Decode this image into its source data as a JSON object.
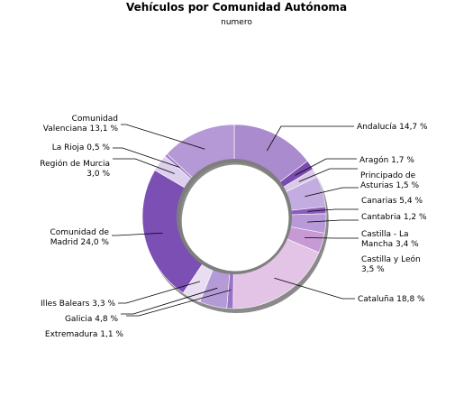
{
  "chart_data": {
    "type": "pie",
    "title": "Vehículos por Comunidad Autónoma",
    "subtitle": "numero",
    "unit": "%",
    "slices": [
      {
        "label": "Andalucía",
        "value_text": "14,7 %",
        "value": 14.7,
        "color": "#a98bce"
      },
      {
        "label": "Aragón",
        "value_text": "1,7 %",
        "value": 1.7,
        "color": "#7a4cb0"
      },
      {
        "label": "Principado de Asturias",
        "value_text": "1,5 %",
        "value": 1.5,
        "color": "#dcc8ea"
      },
      {
        "label": "Canarias",
        "value_text": "5,4 %",
        "value": 5.4,
        "color": "#c3acdf"
      },
      {
        "label": "Cantabria",
        "value_text": "1,2 %",
        "value": 1.2,
        "color": "#8b5bbd"
      },
      {
        "label": "Castilla - La Mancha",
        "value_text": "3,4 %",
        "value": 3.4,
        "color": "#b89ad8"
      },
      {
        "label": "Castilla y León",
        "value_text": "3,5 %",
        "value": 3.5,
        "color": "#c79ad5"
      },
      {
        "label": "Cataluña",
        "value_text": "18,8 %",
        "value": 18.8,
        "color": "#e3c3e6"
      },
      {
        "label": "Extremadura",
        "value_text": "1,1 %",
        "value": 1.1,
        "color": "#9a72c6"
      },
      {
        "label": "Galicia",
        "value_text": "4,8 %",
        "value": 4.8,
        "color": "#b59ad8"
      },
      {
        "label": "Illes Balears",
        "value_text": "3,3 %",
        "value": 3.3,
        "color": "#e9ddf2"
      },
      {
        "label": "Comunidad de Madrid",
        "value_text": "24,0 %",
        "value": 24.0,
        "color": "#7b4fb3"
      },
      {
        "label": "Región de Murcia",
        "value_text": "3,0 %",
        "value": 3.0,
        "color": "#ddd0ec"
      },
      {
        "label": "La Rioja",
        "value_text": "0,5 %",
        "value": 0.5,
        "color": "#9f7ac8"
      },
      {
        "label": "Comunidad Valenciana",
        "value_text": "13,1 %",
        "value": 13.1,
        "color": "#b599d6"
      }
    ]
  }
}
